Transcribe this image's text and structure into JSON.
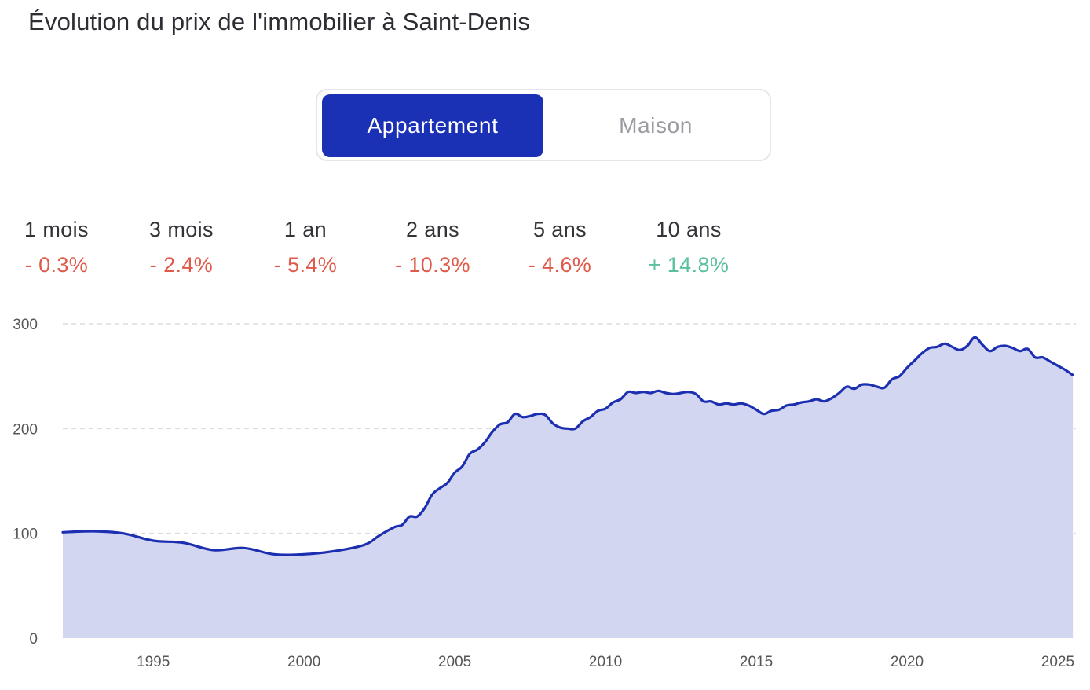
{
  "header": {
    "title": "Évolution du prix de l'immobilier à Saint-Denis"
  },
  "toggle": {
    "options": [
      {
        "label": "Appartement",
        "active": true
      },
      {
        "label": "Maison",
        "active": false
      }
    ]
  },
  "stats": [
    {
      "label": "1 mois",
      "value": "- 0.3%",
      "trend": "down"
    },
    {
      "label": "3 mois",
      "value": "- 2.4%",
      "trend": "down"
    },
    {
      "label": "1 an",
      "value": "- 5.4%",
      "trend": "down"
    },
    {
      "label": "2 ans",
      "value": "- 10.3%",
      "trend": "down"
    },
    {
      "label": "5 ans",
      "value": "- 4.6%",
      "trend": "down"
    },
    {
      "label": "10 ans",
      "value": "+ 14.8%",
      "trend": "up"
    }
  ],
  "colors": {
    "accent": "#1b31b5",
    "line": "#1c2fb0",
    "area_fill": "#d2d6f1",
    "negative": "#e05a4b",
    "positive": "#5cc0a0",
    "grid": "#dcdce0"
  },
  "chart_data": {
    "type": "area",
    "title": "",
    "xlabel": "",
    "ylabel": "",
    "xlim": [
      1992,
      2025.6
    ],
    "ylim": [
      0,
      300
    ],
    "yticks": [
      0,
      100,
      200,
      300
    ],
    "xticks": [
      1995,
      2000,
      2005,
      2010,
      2015,
      2020,
      2025
    ],
    "grid": "horizontal dashed",
    "legend": "none",
    "series": [
      {
        "x": [
          1992.0,
          1993.0,
          1994.0,
          1995.0,
          1996.0,
          1997.0,
          1998.0,
          1999.0,
          2000.0,
          2001.0,
          2002.0,
          2002.5,
          2003.0,
          2003.25,
          2003.5,
          2003.75,
          2004.0,
          2004.25,
          2004.5,
          2004.75,
          2005.0,
          2005.25,
          2005.5,
          2005.75,
          2006.0,
          2006.25,
          2006.5,
          2006.75,
          2007.0,
          2007.25,
          2007.5,
          2007.75,
          2008.0,
          2008.25,
          2008.5,
          2008.75,
          2009.0,
          2009.25,
          2009.5,
          2009.75,
          2010.0,
          2010.25,
          2010.5,
          2010.75,
          2011.0,
          2011.25,
          2011.5,
          2011.75,
          2012.0,
          2012.25,
          2012.5,
          2012.75,
          2013.0,
          2013.25,
          2013.5,
          2013.75,
          2014.0,
          2014.25,
          2014.5,
          2014.75,
          2015.0,
          2015.25,
          2015.5,
          2015.75,
          2016.0,
          2016.25,
          2016.5,
          2016.75,
          2017.0,
          2017.25,
          2017.5,
          2017.75,
          2018.0,
          2018.25,
          2018.5,
          2018.75,
          2019.0,
          2019.25,
          2019.5,
          2019.75,
          2020.0,
          2020.25,
          2020.5,
          2020.75,
          2021.0,
          2021.25,
          2021.5,
          2021.75,
          2022.0,
          2022.25,
          2022.5,
          2022.75,
          2023.0,
          2023.25,
          2023.5,
          2023.75,
          2024.0,
          2024.25,
          2024.5,
          2024.75,
          2025.0,
          2025.25,
          2025.5
        ],
        "values": [
          101,
          102,
          100,
          93,
          91,
          84,
          86,
          80,
          80,
          83,
          89,
          98,
          106,
          108,
          116,
          116,
          124,
          137,
          143,
          148,
          158,
          164,
          176,
          180,
          187,
          197,
          204,
          206,
          214,
          211,
          212,
          214,
          213,
          205,
          201,
          200,
          200,
          207,
          211,
          217,
          219,
          225,
          228,
          235,
          234,
          235,
          234,
          236,
          234,
          233,
          234,
          235,
          233,
          226,
          226,
          223,
          224,
          223,
          224,
          222,
          218,
          214,
          217,
          218,
          222,
          223,
          225,
          226,
          228,
          226,
          229,
          234,
          240,
          238,
          242,
          242,
          240,
          239,
          247,
          250,
          258,
          265,
          272,
          277,
          278,
          281,
          278,
          275,
          279,
          287,
          280,
          274,
          278,
          279,
          277,
          274,
          276,
          268,
          268,
          264,
          260,
          256,
          251
        ]
      }
    ]
  }
}
